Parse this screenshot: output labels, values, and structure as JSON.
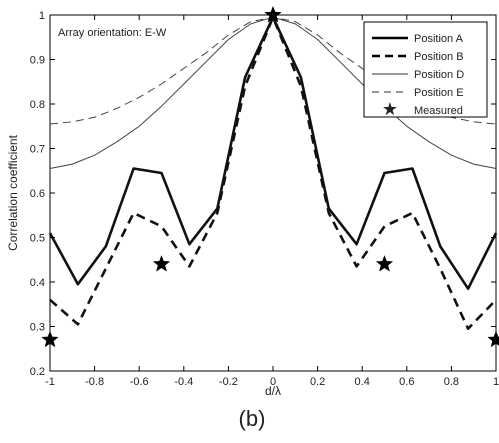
{
  "chart_data": {
    "type": "line",
    "xlabel": "d/λ",
    "ylabel": "Correlation coefficient",
    "annotation": "Array orientation: E-W",
    "caption": "(b)",
    "xlim": [
      -1,
      1
    ],
    "ylim": [
      0.2,
      1
    ],
    "xticks": [
      "-1",
      "-0.8",
      "-0.6",
      "-0.4",
      "-0.2",
      "0",
      "0.2",
      "0.4",
      "0.6",
      "0.8",
      "1"
    ],
    "yticks": [
      "0.2",
      "0.3",
      "0.4",
      "0.5",
      "0.6",
      "0.7",
      "0.8",
      "0.9",
      "1"
    ],
    "legend_position": "top-right",
    "series": [
      {
        "name": "Position A",
        "style": "solid-thick",
        "x": [
          -1,
          -0.875,
          -0.75,
          -0.625,
          -0.5,
          -0.375,
          -0.25,
          -0.125,
          0,
          0.125,
          0.25,
          0.375,
          0.5,
          0.625,
          0.75,
          0.875,
          1
        ],
        "y": [
          0.51,
          0.395,
          0.48,
          0.655,
          0.645,
          0.485,
          0.565,
          0.86,
          0.995,
          0.86,
          0.565,
          0.485,
          0.645,
          0.655,
          0.48,
          0.385,
          0.51
        ]
      },
      {
        "name": "Position B",
        "style": "dashed-thick",
        "x": [
          -1,
          -0.875,
          -0.75,
          -0.625,
          -0.5,
          -0.375,
          -0.25,
          -0.125,
          0,
          0.125,
          0.25,
          0.375,
          0.5,
          0.625,
          0.75,
          0.875,
          1
        ],
        "y": [
          0.36,
          0.305,
          0.43,
          0.555,
          0.525,
          0.435,
          0.555,
          0.84,
          0.995,
          0.84,
          0.555,
          0.435,
          0.525,
          0.555,
          0.43,
          0.295,
          0.36
        ]
      },
      {
        "name": "Position D",
        "style": "solid-thin",
        "x": [
          -1,
          -0.9,
          -0.8,
          -0.7,
          -0.6,
          -0.5,
          -0.4,
          -0.3,
          -0.2,
          -0.1,
          0,
          0.1,
          0.2,
          0.3,
          0.4,
          0.5,
          0.6,
          0.7,
          0.8,
          0.9,
          1
        ],
        "y": [
          0.655,
          0.665,
          0.685,
          0.715,
          0.75,
          0.795,
          0.845,
          0.895,
          0.945,
          0.98,
          0.995,
          0.98,
          0.945,
          0.895,
          0.845,
          0.795,
          0.75,
          0.715,
          0.685,
          0.665,
          0.655
        ]
      },
      {
        "name": "Position E",
        "style": "dashed-thin",
        "x": [
          -1,
          -0.9,
          -0.8,
          -0.7,
          -0.6,
          -0.5,
          -0.4,
          -0.3,
          -0.2,
          -0.1,
          0,
          0.1,
          0.2,
          0.3,
          0.4,
          0.5,
          0.6,
          0.7,
          0.8,
          0.9,
          1
        ],
        "y": [
          0.755,
          0.76,
          0.77,
          0.79,
          0.815,
          0.845,
          0.88,
          0.915,
          0.955,
          0.985,
          0.995,
          0.985,
          0.955,
          0.915,
          0.88,
          0.845,
          0.815,
          0.79,
          0.77,
          0.76,
          0.755
        ]
      }
    ],
    "measured": {
      "name": "Measured",
      "x": [
        -1,
        -0.5,
        0,
        0.5,
        1
      ],
      "y": [
        0.27,
        0.44,
        1.0,
        0.44,
        0.27
      ]
    }
  }
}
